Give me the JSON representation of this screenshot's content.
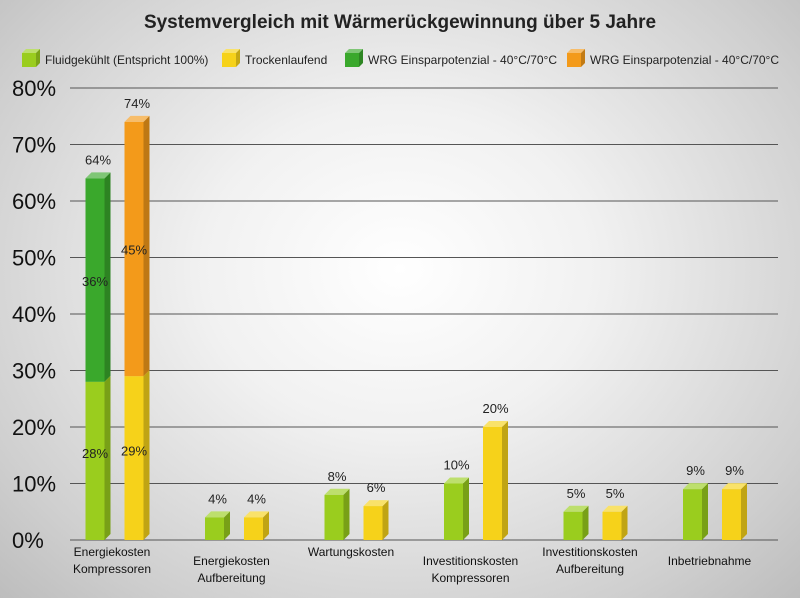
{
  "chart_data": {
    "type": "bar",
    "title": "Systemvergleich mit Wärmerückgewinnung über 5 Jahre",
    "categories": [
      [
        "Energiekosten",
        "Kompressoren"
      ],
      [
        "Energiekosten",
        "Aufbereitung"
      ],
      [
        "Wartungskosten"
      ],
      [
        "Investitionskosten",
        "Kompressoren"
      ],
      [
        "Investitionskosten",
        "Aufbereitung"
      ],
      [
        "Inbetriebnahme"
      ]
    ],
    "ylim": [
      0,
      80
    ],
    "yticks": [
      0,
      10,
      20,
      30,
      40,
      50,
      60,
      70,
      80
    ],
    "ytick_labels": [
      "0%",
      "10%",
      "20%",
      "30%",
      "40%",
      "50%",
      "60%",
      "70%",
      "80%"
    ],
    "grid": true,
    "legend_position": "top",
    "series": [
      {
        "name": "Fluidgekühlt (Entspricht 100%)",
        "color": "#9acd1e",
        "values": [
          28,
          4,
          8,
          10,
          5,
          9
        ]
      },
      {
        "name": "Trockenlaufend",
        "color": "#f6d21a",
        "values": [
          29,
          4,
          6,
          20,
          5,
          9
        ]
      },
      {
        "name": "WRG Einsparpotenzial - 40°C/70°C",
        "color": "#3aa82c",
        "stack_on": 0,
        "values": [
          36,
          null,
          null,
          null,
          null,
          null
        ]
      },
      {
        "name": "WRG Einsparpotenzial - 40°C/70°C",
        "color": "#f39a1a",
        "stack_on": 1,
        "values": [
          45,
          null,
          null,
          null,
          null,
          null
        ]
      }
    ],
    "labels": {
      "base_inside": [
        "28%",
        "29%"
      ],
      "stack_inside": [
        "36%",
        "45%"
      ],
      "totals": [
        "64%",
        "74%",
        "4%",
        "4%",
        "8%",
        "6%",
        "10%",
        "20%",
        "5%",
        "5%",
        "9%",
        "9%"
      ]
    }
  }
}
